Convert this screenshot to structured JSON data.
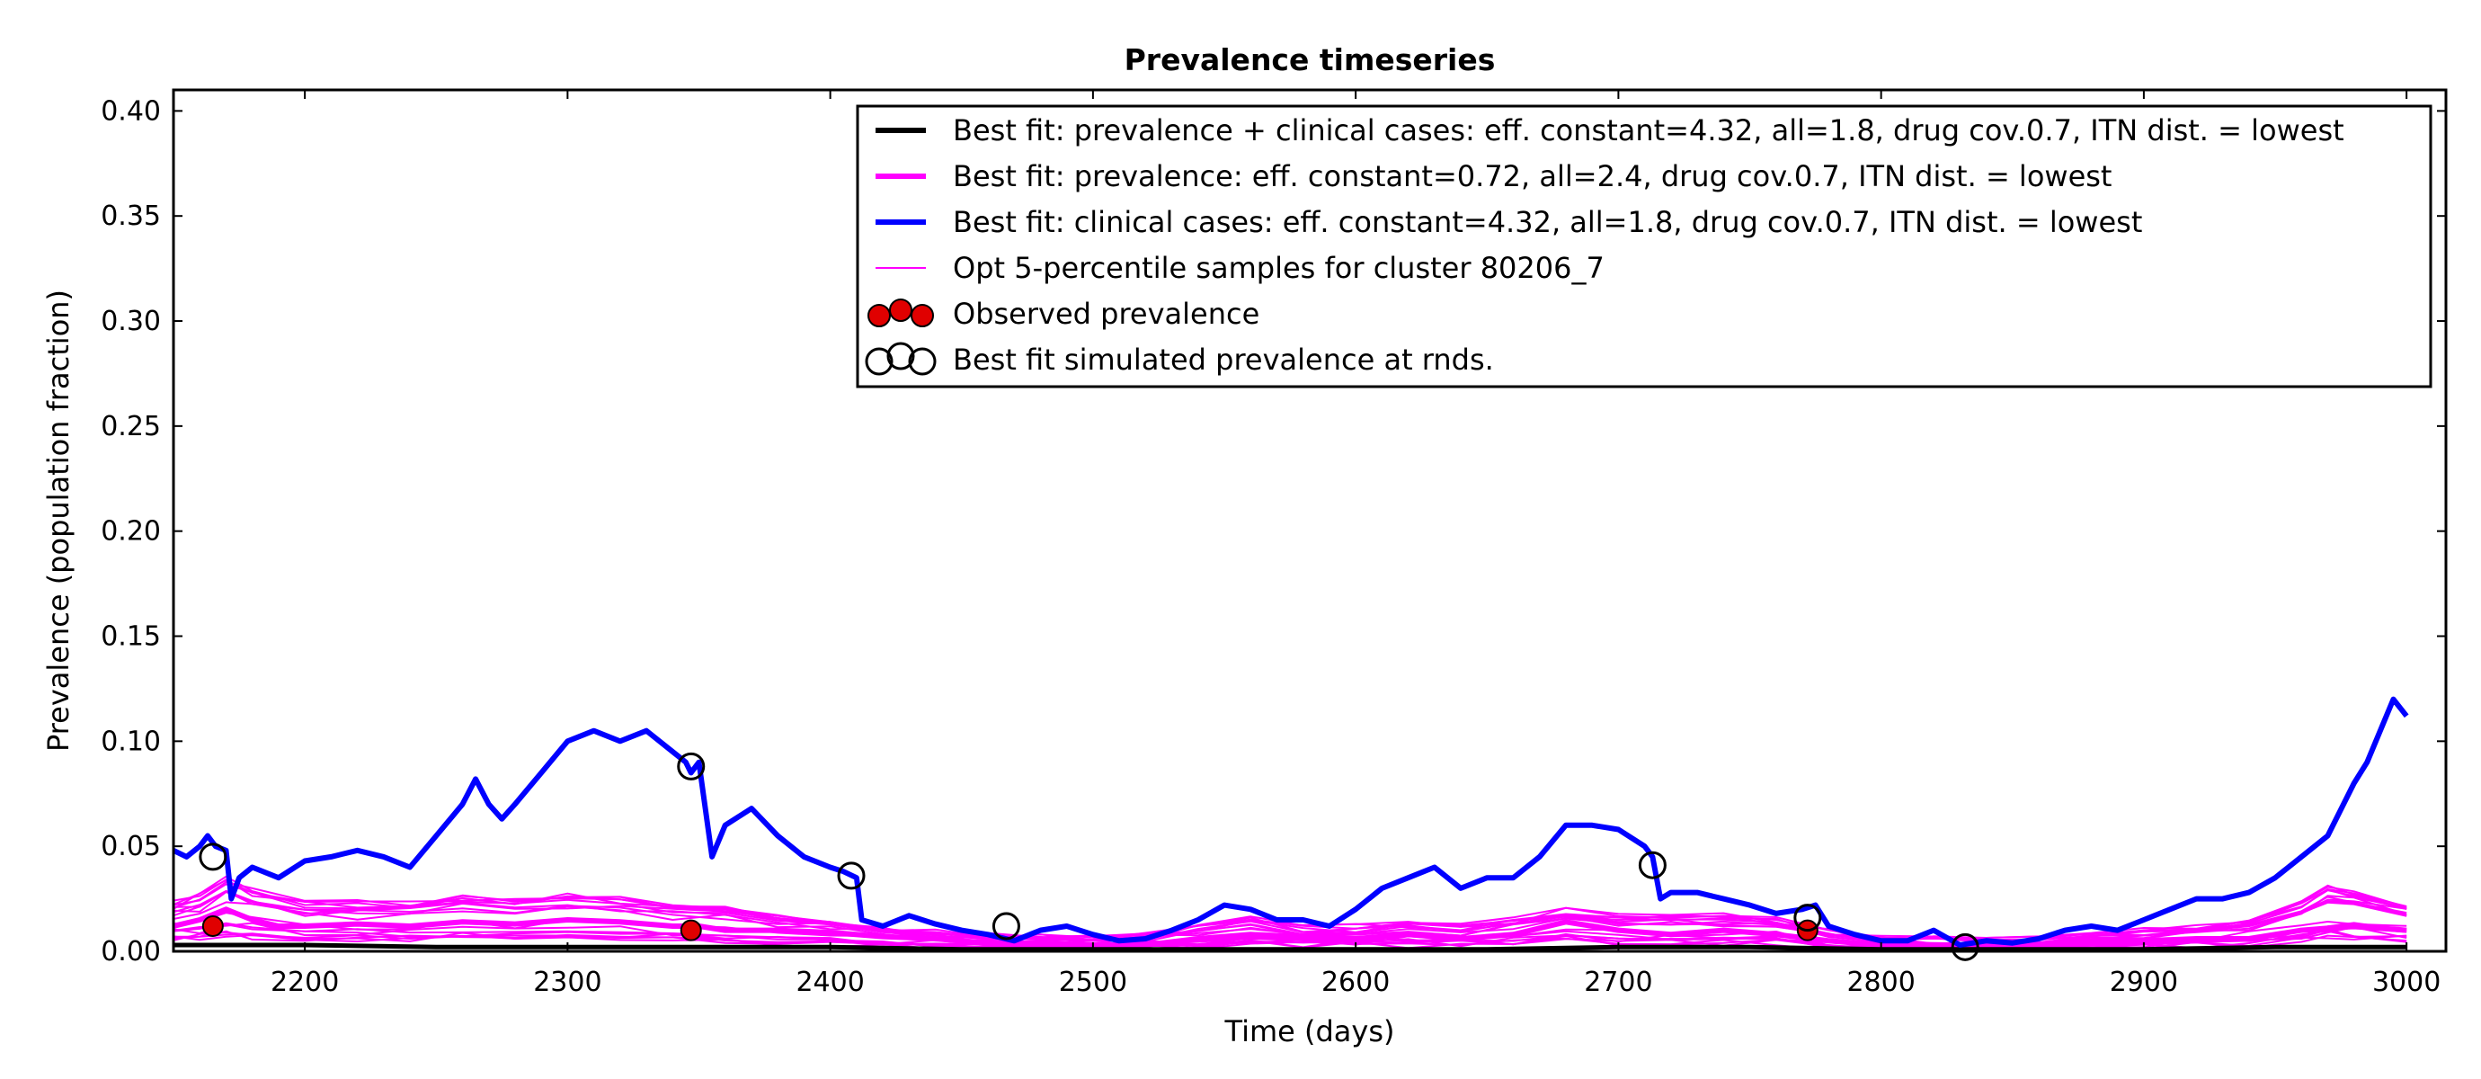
{
  "chart_data": {
    "type": "line",
    "title": "Prevalence timeseries",
    "xlabel": "Time (days)",
    "ylabel": "Prevalence (population fraction)",
    "xlim": [
      2150,
      3015
    ],
    "ylim": [
      0.0,
      0.41
    ],
    "x_ticks": [
      2200,
      2300,
      2400,
      2500,
      2600,
      2700,
      2800,
      2900,
      3000
    ],
    "y_ticks": [
      "0.00",
      "0.05",
      "0.10",
      "0.15",
      "0.20",
      "0.25",
      "0.30",
      "0.35",
      "0.40"
    ],
    "y_tick_values": [
      0,
      0.05,
      0.1,
      0.15,
      0.2,
      0.25,
      0.3,
      0.35,
      0.4
    ],
    "grid": false,
    "legend_position": "top-right",
    "colors": {
      "best_fit_combined": "#000000",
      "best_fit_prevalence": "#ff00ff",
      "best_fit_clinical": "#0000ff",
      "samples": "#ff00ff",
      "observed": "#e00000",
      "simulated_markers": "#000000"
    },
    "legend": [
      {
        "label": "Best fit: prevalence + clinical cases: eff. constant=4.32, all=1.8, drug cov.0.7, ITN dist. = lowest",
        "style": "thick-line",
        "color": "#000000"
      },
      {
        "label": "Best fit: prevalence: eff. constant=0.72, all=2.4, drug cov.0.7, ITN dist. = lowest",
        "style": "thick-line",
        "color": "#ff00ff"
      },
      {
        "label": "Best fit: clinical cases: eff. constant=4.32, all=1.8, drug cov.0.7, ITN dist. = lowest",
        "style": "thick-line",
        "color": "#0000ff"
      },
      {
        "label": "Opt 5-percentile samples for cluster 80206_7",
        "style": "thin-line",
        "color": "#ff00ff"
      },
      {
        "label": "Observed prevalence",
        "style": "filled-circles",
        "color": "#e00000"
      },
      {
        "label": "Best fit simulated prevalence at rnds.",
        "style": "open-circles",
        "color": "#000000"
      }
    ],
    "series": [
      {
        "role": "clinical",
        "x": [
          2150,
          2155,
          2160,
          2163,
          2166,
          2170,
          2172,
          2175,
          2180,
          2190,
          2200,
          2210,
          2220,
          2230,
          2240,
          2250,
          2260,
          2265,
          2270,
          2275,
          2280,
          2290,
          2300,
          2310,
          2320,
          2330,
          2340,
          2345,
          2347,
          2350,
          2355,
          2360,
          2370,
          2380,
          2390,
          2400,
          2405,
          2410,
          2412,
          2420,
          2430,
          2440,
          2450,
          2460,
          2470,
          2480,
          2490,
          2500,
          2510,
          2520,
          2530,
          2540,
          2550,
          2560,
          2570,
          2580,
          2590,
          2600,
          2610,
          2620,
          2630,
          2640,
          2650,
          2660,
          2670,
          2680,
          2690,
          2700,
          2710,
          2713,
          2716,
          2720,
          2730,
          2740,
          2750,
          2760,
          2770,
          2775,
          2780,
          2790,
          2800,
          2810,
          2820,
          2830,
          2840,
          2850,
          2860,
          2870,
          2880,
          2890,
          2900,
          2910,
          2920,
          2930,
          2940,
          2950,
          2960,
          2970,
          2980,
          2985,
          2990,
          2995,
          3000
        ],
        "y": [
          0.048,
          0.045,
          0.05,
          0.055,
          0.05,
          0.048,
          0.025,
          0.035,
          0.04,
          0.035,
          0.043,
          0.045,
          0.048,
          0.045,
          0.04,
          0.055,
          0.07,
          0.082,
          0.07,
          0.063,
          0.07,
          0.085,
          0.1,
          0.105,
          0.1,
          0.105,
          0.095,
          0.09,
          0.085,
          0.09,
          0.045,
          0.06,
          0.068,
          0.055,
          0.045,
          0.04,
          0.038,
          0.035,
          0.015,
          0.012,
          0.017,
          0.013,
          0.01,
          0.008,
          0.005,
          0.01,
          0.012,
          0.008,
          0.005,
          0.006,
          0.01,
          0.015,
          0.022,
          0.02,
          0.015,
          0.015,
          0.012,
          0.02,
          0.03,
          0.035,
          0.04,
          0.03,
          0.035,
          0.035,
          0.045,
          0.06,
          0.06,
          0.058,
          0.05,
          0.045,
          0.025,
          0.028,
          0.028,
          0.025,
          0.022,
          0.018,
          0.02,
          0.022,
          0.012,
          0.008,
          0.005,
          0.005,
          0.01,
          0.003,
          0.005,
          0.004,
          0.006,
          0.01,
          0.012,
          0.01,
          0.015,
          0.02,
          0.025,
          0.025,
          0.028,
          0.035,
          0.045,
          0.055,
          0.08,
          0.09,
          0.105,
          0.12,
          0.112
        ]
      },
      {
        "role": "prevalence",
        "x": [
          2150,
          2160,
          2170,
          2180,
          2190,
          2200,
          2220,
          2240,
          2260,
          2280,
          2300,
          2320,
          2340,
          2350,
          2360,
          2380,
          2400,
          2420,
          2440,
          2460,
          2480,
          2500,
          2520,
          2540,
          2560,
          2580,
          2600,
          2620,
          2640,
          2660,
          2680,
          2700,
          2720,
          2740,
          2760,
          2780,
          2800,
          2820,
          2840,
          2860,
          2880,
          2900,
          2920,
          2940,
          2960,
          2980,
          3000
        ],
        "y": [
          0.012,
          0.015,
          0.02,
          0.015,
          0.012,
          0.012,
          0.013,
          0.012,
          0.014,
          0.013,
          0.015,
          0.014,
          0.012,
          0.012,
          0.01,
          0.01,
          0.009,
          0.007,
          0.006,
          0.004,
          0.004,
          0.003,
          0.003,
          0.006,
          0.008,
          0.007,
          0.006,
          0.008,
          0.006,
          0.008,
          0.014,
          0.01,
          0.008,
          0.01,
          0.008,
          0.005,
          0.003,
          0.003,
          0.003,
          0.003,
          0.004,
          0.005,
          0.006,
          0.006,
          0.01,
          0.012,
          0.01
        ]
      },
      {
        "role": "combined",
        "x": [
          2150,
          2200,
          2250,
          2300,
          2350,
          2400,
          2450,
          2500,
          2550,
          2600,
          2650,
          2700,
          2750,
          2800,
          2850,
          2900,
          2950,
          3000
        ],
        "y": [
          0.003,
          0.003,
          0.002,
          0.002,
          0.002,
          0.002,
          0.001,
          0.001,
          0.001,
          0.001,
          0.001,
          0.002,
          0.002,
          0.001,
          0.001,
          0.001,
          0.002,
          0.002
        ]
      }
    ],
    "samples": {
      "count": 18,
      "x": [
        2150,
        2160,
        2170,
        2180,
        2200,
        2220,
        2240,
        2260,
        2280,
        2300,
        2320,
        2340,
        2360,
        2380,
        2400,
        2420,
        2440,
        2460,
        2480,
        2500,
        2520,
        2540,
        2560,
        2580,
        2600,
        2620,
        2640,
        2660,
        2680,
        2700,
        2720,
        2740,
        2760,
        2780,
        2800,
        2820,
        2840,
        2860,
        2880,
        2900,
        2920,
        2940,
        2960,
        2970,
        2980,
        3000
      ],
      "y_mean": [
        0.012,
        0.014,
        0.018,
        0.015,
        0.012,
        0.012,
        0.012,
        0.014,
        0.013,
        0.014,
        0.013,
        0.012,
        0.011,
        0.009,
        0.008,
        0.006,
        0.005,
        0.004,
        0.004,
        0.003,
        0.004,
        0.006,
        0.008,
        0.006,
        0.006,
        0.007,
        0.006,
        0.008,
        0.01,
        0.009,
        0.009,
        0.009,
        0.008,
        0.005,
        0.003,
        0.003,
        0.003,
        0.003,
        0.004,
        0.005,
        0.006,
        0.008,
        0.012,
        0.016,
        0.015,
        0.012
      ]
    },
    "observed_prevalence": {
      "x": [
        2165,
        2347,
        2772
      ],
      "y": [
        0.012,
        0.01,
        0.01
      ]
    },
    "simulated_markers": {
      "x": [
        2165,
        2347,
        2408,
        2467,
        2713,
        2772,
        2832
      ],
      "y": [
        0.045,
        0.088,
        0.036,
        0.012,
        0.041,
        0.016,
        0.002
      ]
    }
  }
}
